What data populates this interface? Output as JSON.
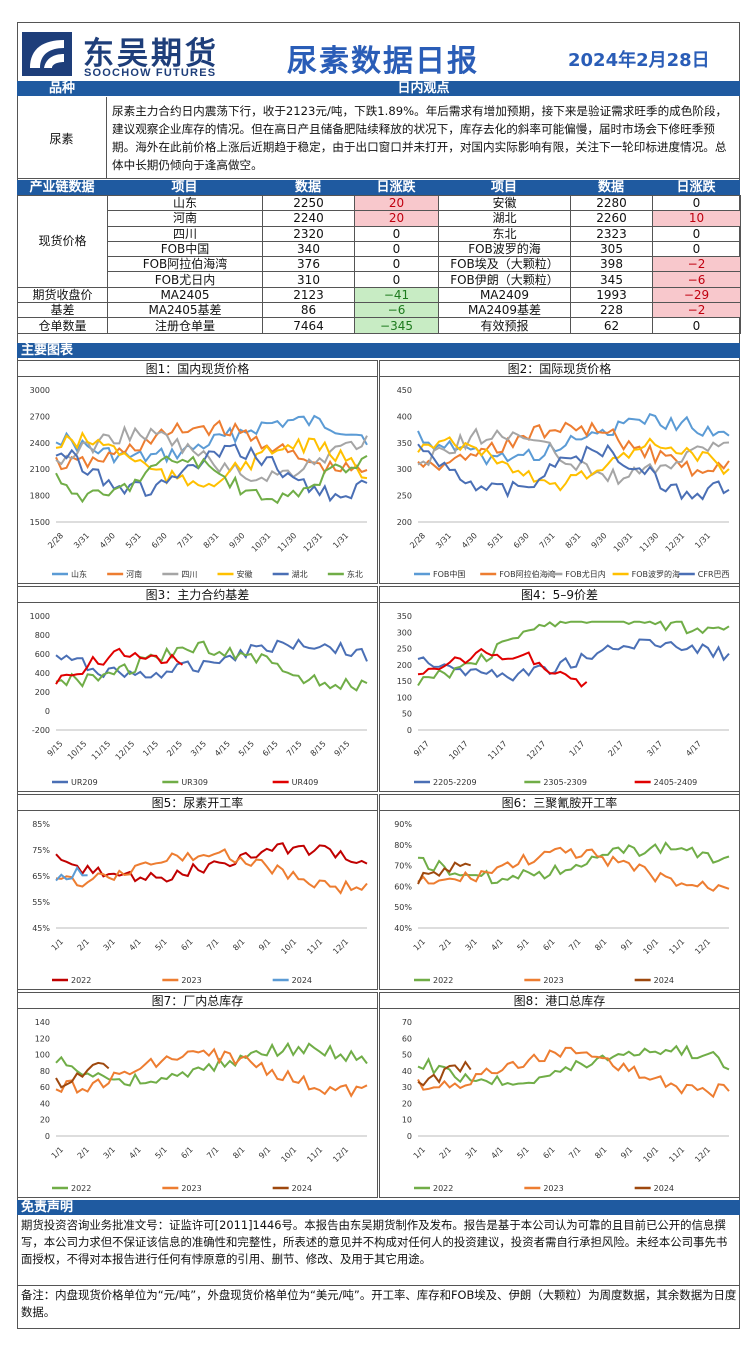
{
  "header": {
    "logo_cn": "东吴期货",
    "logo_en": "SOOCHOW FUTURES",
    "title": "尿素数据日报",
    "date": "2024年2月28日"
  },
  "view_bar": {
    "variety": "品种",
    "view": "日内观点"
  },
  "view": {
    "label": "尿素",
    "text": "尿素主力合约日内震荡下行，收于2123元/吨，下跌1.89%。年后需求有增加预期，接下来是验证需求旺季的成色阶段，建议观察企业库存的情况。但在高日产且储备肥陆续释放的状况下，库存去化的斜率可能偏慢，届时市场会下修旺季预期。海外在此前价格上涨后近期趋于稳定，由于出口窗口并未打开，对国内实际影响有限，关注下一轮印标进度情况。总体中长期仍倾向于逢高做空。"
  },
  "table_header": {
    "c0": "产业链数据",
    "c1": "项目",
    "c2": "数据",
    "c3": "日涨跌",
    "c4": "项目",
    "c5": "数据",
    "c6": "日涨跌"
  },
  "table": {
    "spot_label": "现货价格",
    "rows": [
      {
        "a": "山东",
        "av": "2250",
        "ad": "20",
        "at": "up",
        "b": "安徽",
        "bv": "2280",
        "bd": "0",
        "bt": ""
      },
      {
        "a": "河南",
        "av": "2240",
        "ad": "20",
        "at": "up",
        "b": "湖北",
        "bv": "2260",
        "bd": "10",
        "bt": "up"
      },
      {
        "a": "四川",
        "av": "2320",
        "ad": "0",
        "at": "",
        "b": "东北",
        "bv": "2323",
        "bd": "0",
        "bt": ""
      },
      {
        "a": "FOB中国",
        "av": "340",
        "ad": "0",
        "at": "",
        "b": "FOB波罗的海",
        "bv": "305",
        "bd": "0",
        "bt": ""
      },
      {
        "a": "FOB阿拉伯海湾",
        "av": "376",
        "ad": "0",
        "at": "",
        "b": "FOB埃及（大颗粒）",
        "bv": "398",
        "bd": "−2",
        "bt": "up"
      },
      {
        "a": "FOB尤日内",
        "av": "310",
        "ad": "0",
        "at": "",
        "b": "FOB伊朗（大颗粒）",
        "bv": "345",
        "bd": "−6",
        "bt": "up"
      }
    ],
    "extra": [
      {
        "label": "期货收盘价",
        "a": "MA2405",
        "av": "2123",
        "ad": "−41",
        "at": "dn",
        "b": "MA2409",
        "bv": "1993",
        "bd": "−29",
        "bt": "up"
      },
      {
        "label": "基差",
        "a": "MA2405基差",
        "av": "86",
        "ad": "−6",
        "at": "dn",
        "b": "MA2409基差",
        "bv": "228",
        "bd": "−2",
        "bt": "up"
      },
      {
        "label": "仓单数量",
        "a": "注册仓单量",
        "av": "7464",
        "ad": "−345",
        "at": "dn",
        "b": "有效预报",
        "bv": "62",
        "bd": "0",
        "bt": ""
      }
    ]
  },
  "charts_bar": "主要图表",
  "colors": {
    "blue": "#4472c4",
    "orange": "#ed7d31",
    "gray": "#a5a5a5",
    "yellow": "#ffc000",
    "navy": "#4a6fb5",
    "green": "#70ad47",
    "lightblue": "#5b9bd5",
    "red": "#e00000",
    "darkred": "#c00000",
    "brown": "#9e480e"
  },
  "charts": [
    {
      "title": "图1：国内现货价格",
      "type": "line",
      "y_ticks": [
        "3000",
        "2700",
        "2400",
        "2100",
        "1800",
        "1500"
      ],
      "x_ticks": [
        "2/28",
        "3/31",
        "4/30",
        "5/31",
        "6/30",
        "7/31",
        "8/31",
        "9/30",
        "10/31",
        "11/30",
        "12/31",
        "1/31"
      ],
      "legend": [
        "山东",
        "河南",
        "四川",
        "安徽",
        "湖北",
        "东北"
      ]
    },
    {
      "title": "图2：国际现货价格",
      "type": "line",
      "y_ticks": [
        "450",
        "400",
        "350",
        "300",
        "250",
        "200"
      ],
      "x_ticks": [
        "2/28",
        "3/31",
        "4/30",
        "5/31",
        "6/30",
        "7/31",
        "8/31",
        "9/30",
        "10/31",
        "11/30",
        "12/31",
        "1/31"
      ],
      "legend": [
        "FOB中国",
        "FOB阿拉伯海湾",
        "FOB尤日内",
        "FOB波罗的海",
        "CFR巴西"
      ]
    },
    {
      "title": "图3：主力合约基差",
      "type": "line",
      "y_ticks": [
        "1000",
        "800",
        "600",
        "400",
        "200",
        "0",
        "-200"
      ],
      "x_ticks": [
        "9/15",
        "10/15",
        "11/15",
        "12/15",
        "1/15",
        "2/15",
        "3/15",
        "4/15",
        "5/15",
        "6/15",
        "7/15",
        "8/15",
        "9/15"
      ],
      "legend": [
        "UR209",
        "UR309",
        "UR409"
      ]
    },
    {
      "title": "图4：5–9价差",
      "type": "line",
      "y_ticks": [
        "350",
        "300",
        "250",
        "200",
        "150",
        "100",
        "50",
        "0"
      ],
      "x_ticks": [
        "9/17",
        "10/17",
        "11/17",
        "12/17",
        "1/17",
        "2/17",
        "3/17",
        "4/17"
      ],
      "legend": [
        "2205-2209",
        "2305-2309",
        "2405-2409"
      ]
    },
    {
      "title": "图5：尿素开工率",
      "type": "line",
      "y_ticks": [
        "85%",
        "75%",
        "65%",
        "55%",
        "45%"
      ],
      "x_ticks": [
        "1/1",
        "2/1",
        "3/1",
        "4/1",
        "5/1",
        "6/1",
        "7/1",
        "8/1",
        "9/1",
        "10/1",
        "11/1",
        "12/1"
      ],
      "legend": [
        "2022",
        "2023",
        "2024"
      ]
    },
    {
      "title": "图6：三聚氰胺开工率",
      "type": "line",
      "y_ticks": [
        "90%",
        "80%",
        "70%",
        "60%",
        "50%",
        "40%"
      ],
      "x_ticks": [
        "1/1",
        "2/1",
        "3/1",
        "4/1",
        "5/1",
        "6/1",
        "7/1",
        "8/1",
        "9/1",
        "10/1",
        "11/1",
        "12/1"
      ],
      "legend": [
        "2022",
        "2023",
        "2024"
      ]
    },
    {
      "title": "图7：厂内总库存",
      "type": "line",
      "y_ticks": [
        "140",
        "120",
        "100",
        "80",
        "60",
        "40",
        "20",
        "0"
      ],
      "x_ticks": [
        "1/1",
        "2/1",
        "3/1",
        "4/1",
        "5/1",
        "6/1",
        "7/1",
        "8/1",
        "9/1",
        "10/1",
        "11/1",
        "12/1"
      ],
      "legend": [
        "2022",
        "2023",
        "2024"
      ]
    },
    {
      "title": "图8：港口总库存",
      "type": "line",
      "y_ticks": [
        "70",
        "60",
        "50",
        "40",
        "30",
        "20",
        "10",
        "0"
      ],
      "x_ticks": [
        "1/1",
        "2/1",
        "3/1",
        "4/1",
        "5/1",
        "6/1",
        "7/1",
        "8/1",
        "9/1",
        "10/1",
        "11/1",
        "12/1"
      ],
      "legend": [
        "2022",
        "2023",
        "2024"
      ]
    }
  ],
  "disclaimer_bar": "免责声明",
  "disclaimer": "期货投资咨询业务批准文号：证监许可[2011]1446号。本报告由东吴期货制作及发布。报告是基于本公司认为可靠的且目前已公开的信息撰写，本公司力求但不保证该信息的准确性和完整性，所表述的意见并不构成对任何人的投资建议，投资者需自行承担风险。未经本公司事先书面授权，不得对本报告进行任何有悖原意的引用、删节、修改、及用于其它用途。",
  "note": "备注：内盘现货价格单位为“元/吨”，外盘现货价格单位为“美元/吨”。开工率、库存和FOB埃及、伊朗（大颗粒）为周度数据，其余数据为日度数据。"
}
